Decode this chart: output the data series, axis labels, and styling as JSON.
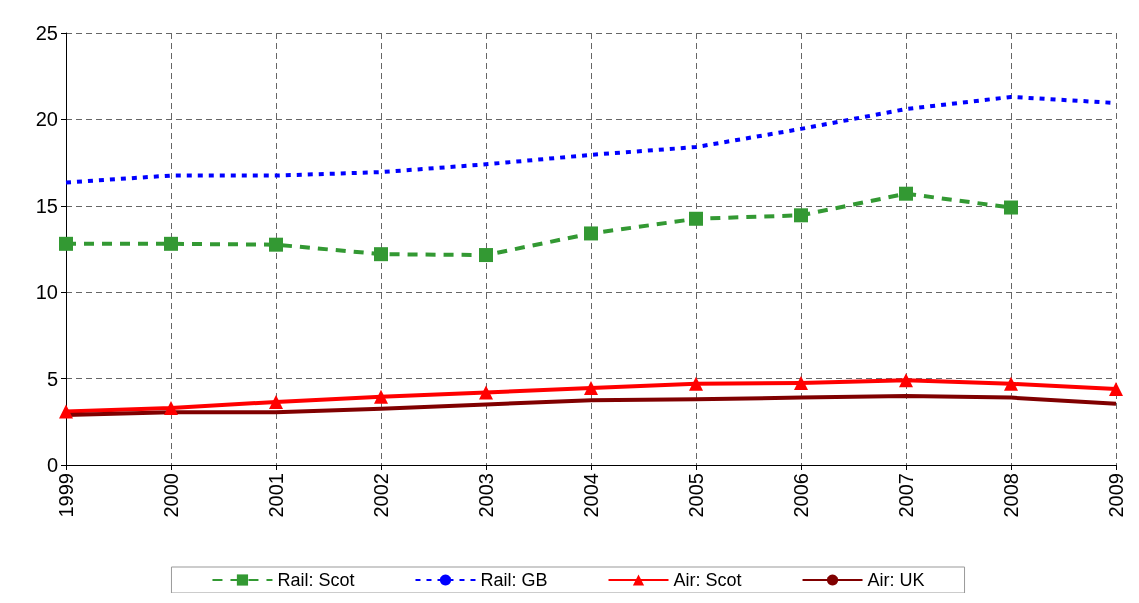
{
  "chart_data": {
    "type": "line",
    "categories": [
      "1999",
      "2000",
      "2001",
      "2002",
      "2003",
      "2004",
      "2005",
      "2006",
      "2007",
      "2008",
      "2009"
    ],
    "ylim": [
      0,
      25
    ],
    "yticks": [
      0,
      5,
      10,
      15,
      20,
      25
    ],
    "grid": true,
    "legend": "bottom",
    "series": [
      {
        "name": "Rail: Scot",
        "color": "#339933",
        "marker": "square",
        "line_style": "dashed",
        "values": [
          12.8,
          12.8,
          12.75,
          12.2,
          12.15,
          13.4,
          14.25,
          14.45,
          15.7,
          14.9,
          null
        ]
      },
      {
        "name": "Rail: GB",
        "color": "#0000ff",
        "marker": "none",
        "line_style": "dotted",
        "values": [
          16.35,
          16.75,
          16.75,
          16.95,
          17.4,
          17.95,
          18.4,
          19.45,
          20.6,
          21.3,
          20.95
        ]
      },
      {
        "name": "Air: Scot",
        "color": "#ff0000",
        "marker": "triangle",
        "line_style": "solid",
        "values": [
          3.1,
          3.3,
          3.65,
          3.95,
          4.2,
          4.45,
          4.7,
          4.75,
          4.9,
          4.7,
          4.4
        ]
      },
      {
        "name": "Air: UK",
        "color": "#800000",
        "marker": "none",
        "line_style": "solid",
        "values": [
          2.9,
          3.05,
          3.05,
          3.25,
          3.5,
          3.75,
          3.8,
          3.9,
          4.0,
          3.9,
          3.55
        ]
      }
    ]
  }
}
